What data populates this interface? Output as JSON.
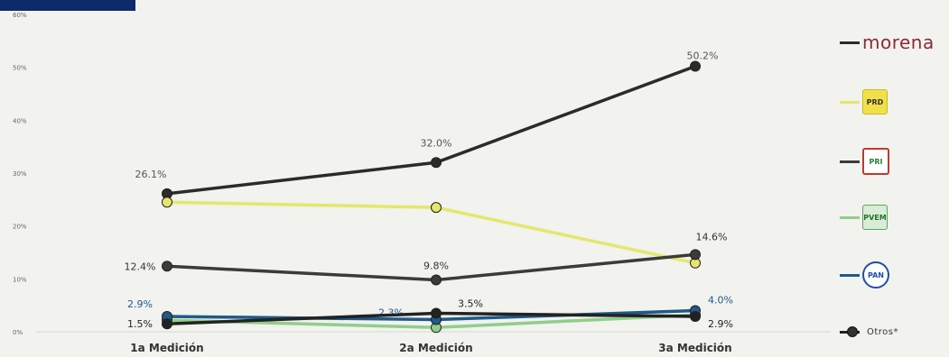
{
  "chart_data": {
    "type": "line",
    "title": "",
    "xlabel": "",
    "ylabel": "",
    "categories": [
      "1a Medición",
      "2a Medición",
      "3a Medición"
    ],
    "ylim": [
      0,
      60
    ],
    "yticks": [
      "0%",
      "10%",
      "20%",
      "30%",
      "40%",
      "50%",
      "60%"
    ],
    "grid": false,
    "legend_position": "right",
    "series": [
      {
        "name": "morena",
        "color": "#2b2b2b",
        "values": [
          26.1,
          32.0,
          50.2
        ],
        "labels": [
          "26.1%",
          "32.0%",
          "50.2%"
        ],
        "label_color": "#555555"
      },
      {
        "name": "PRD",
        "color": "#e3e86a",
        "values": [
          24.5,
          23.5,
          13.0
        ],
        "labels": [
          "",
          "",
          ""
        ],
        "label_color": "#d6d97a"
      },
      {
        "name": "PRI",
        "color": "#3b3b3b",
        "values": [
          12.4,
          9.8,
          14.6
        ],
        "labels": [
          "12.4%",
          "9.8%",
          "14.6%"
        ],
        "label_color": "#333333"
      },
      {
        "name": "PVEM",
        "color": "#8fcf8a",
        "values": [
          2.2,
          0.8,
          3.2
        ],
        "labels": [
          "",
          "",
          ""
        ],
        "label_color": "#8fcf8a"
      },
      {
        "name": "PAN",
        "color": "#1e5a8a",
        "values": [
          2.9,
          2.3,
          4.0
        ],
        "labels": [
          "2.9%",
          "2.3%",
          "4.0%"
        ],
        "label_color": "#1e5a8a"
      },
      {
        "name": "Otros*",
        "color": "#222222",
        "values": [
          1.5,
          3.5,
          2.9
        ],
        "labels": [
          "1.5%",
          "3.5%",
          "2.9%"
        ],
        "label_color": "#222222"
      }
    ]
  },
  "legend": {
    "morena_label": "morena",
    "prd_logo": "PRD",
    "pri_logo": "PRI",
    "pvem_logo": "PVEM",
    "pan_logo": "PAN",
    "otros_label": "Otros*"
  }
}
